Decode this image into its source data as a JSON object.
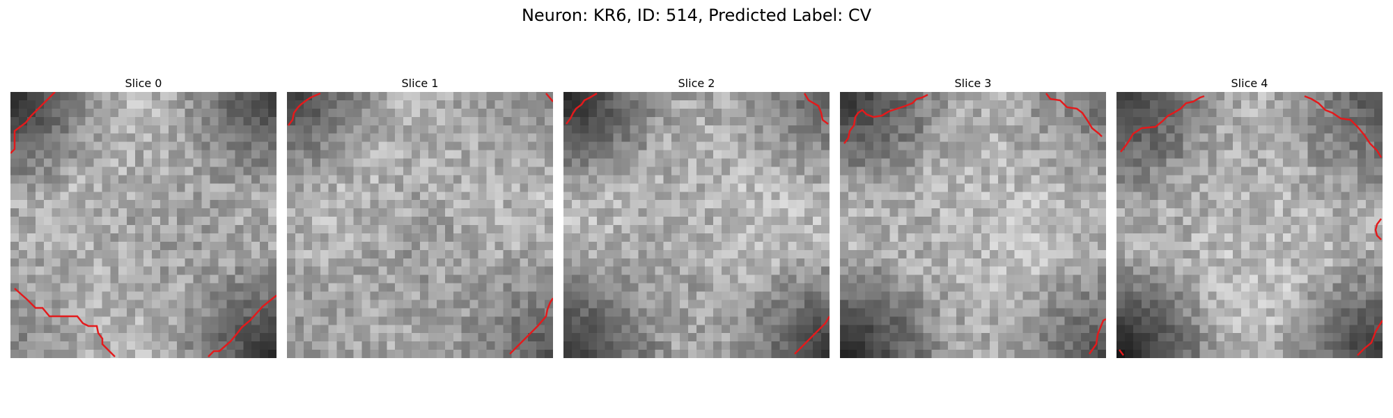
{
  "figure": {
    "title": "Neuron: KR6, ID: 514, Predicted Label: CV"
  },
  "contour_color": "#e31a1c",
  "slices": [
    {
      "label": "Slice 0",
      "index": 0
    },
    {
      "label": "Slice 1",
      "index": 1
    },
    {
      "label": "Slice 2",
      "index": 2
    },
    {
      "label": "Slice 3",
      "index": 3
    },
    {
      "label": "Slice 4",
      "index": 4
    }
  ]
}
